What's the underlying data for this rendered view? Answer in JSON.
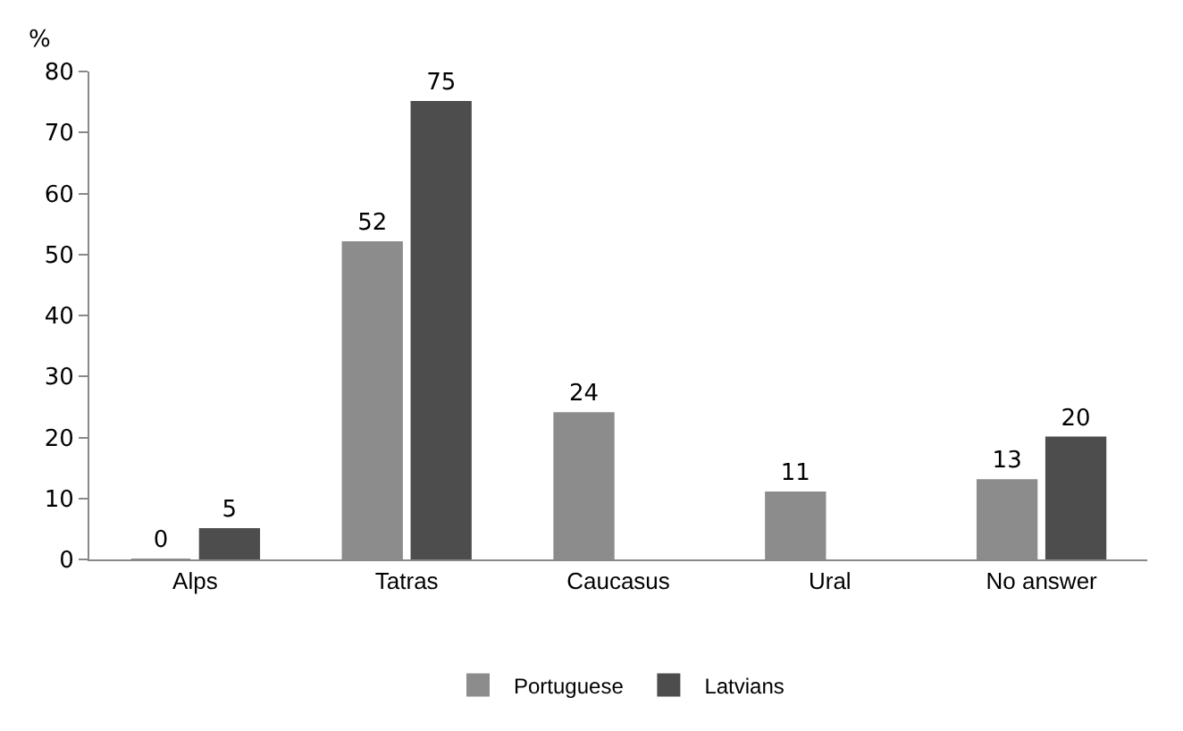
{
  "chart_data": {
    "type": "bar",
    "ylabel": "%",
    "categories": [
      "Alps",
      "Tatras",
      "Caucasus",
      "Ural",
      "No answer"
    ],
    "series": [
      {
        "name": "Portuguese",
        "color": "#8c8c8c",
        "values": [
          0,
          52,
          24,
          11,
          13
        ]
      },
      {
        "name": "Latvians",
        "color": "#4d4d4d",
        "values": [
          5,
          75,
          null,
          null,
          20
        ]
      }
    ],
    "ylim": [
      0,
      80
    ],
    "yticks": [
      0,
      10,
      20,
      30,
      40,
      50,
      60,
      70,
      80
    ],
    "data_labels": true,
    "legend": "bottom"
  }
}
